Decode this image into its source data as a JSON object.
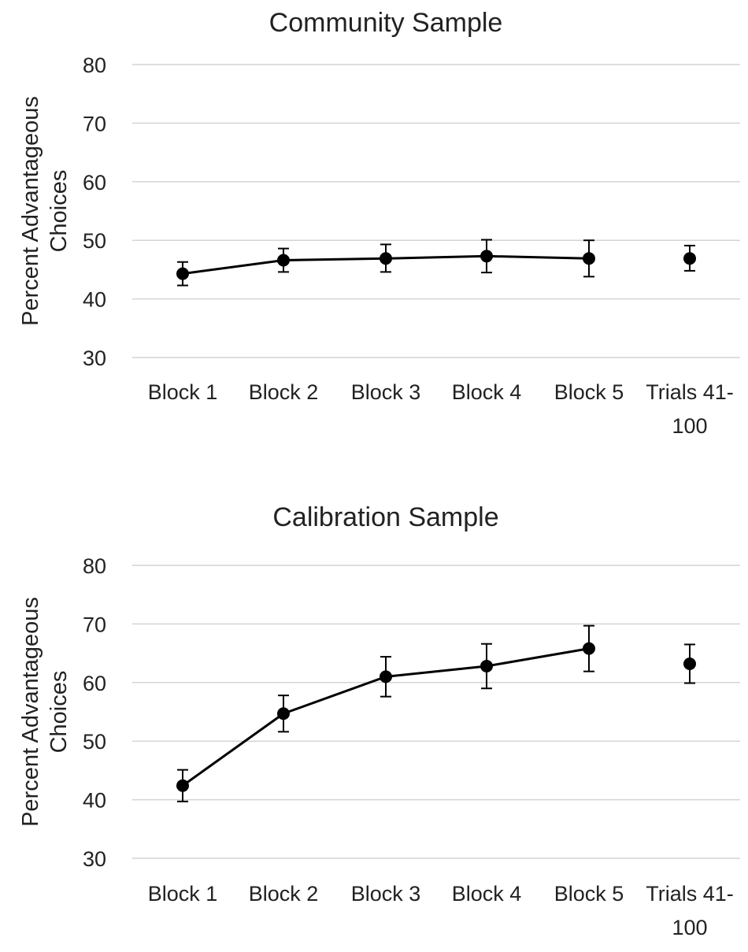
{
  "colors": {
    "grid": "#d4d4d4",
    "line": "#000000",
    "marker": "#000000",
    "text": "#222222",
    "background": "#ffffff"
  },
  "chart_data": [
    {
      "type": "line",
      "title": "Community Sample",
      "ylabel": [
        "Percent Advantageous",
        "Choices"
      ],
      "xlabel": "",
      "ylim": [
        30,
        80
      ],
      "yticks": [
        30,
        40,
        50,
        60,
        70,
        80
      ],
      "grid": true,
      "categories": [
        [
          "Block 1"
        ],
        [
          "Block 2"
        ],
        [
          "Block 3"
        ],
        [
          "Block 4"
        ],
        [
          "Block 5"
        ],
        [
          "Trials 41-",
          "100"
        ]
      ],
      "series": [
        {
          "name": "Community",
          "values": [
            44.3,
            46.6,
            46.9,
            47.3,
            46.9,
            46.9
          ],
          "err_low": [
            42.3,
            44.6,
            44.6,
            44.5,
            43.8,
            44.8
          ],
          "err_high": [
            46.3,
            48.6,
            49.3,
            50.1,
            50.0,
            49.1
          ],
          "connected": [
            true,
            true,
            true,
            true,
            true,
            false
          ]
        }
      ]
    },
    {
      "type": "line",
      "title": "Calibration Sample",
      "ylabel": [
        "Percent Advantageous",
        "Choices"
      ],
      "xlabel": "",
      "ylim": [
        30,
        80
      ],
      "yticks": [
        30,
        40,
        50,
        60,
        70,
        80
      ],
      "grid": true,
      "categories": [
        [
          "Block 1"
        ],
        [
          "Block 2"
        ],
        [
          "Block 3"
        ],
        [
          "Block 4"
        ],
        [
          "Block 5"
        ],
        [
          "Trials 41-",
          "100"
        ]
      ],
      "series": [
        {
          "name": "Calibration",
          "values": [
            42.4,
            54.7,
            61.0,
            62.8,
            65.8,
            63.2
          ],
          "err_low": [
            39.7,
            51.6,
            57.6,
            59.0,
            61.9,
            59.9
          ],
          "err_high": [
            45.1,
            57.8,
            64.4,
            66.6,
            69.7,
            66.5
          ],
          "connected": [
            true,
            true,
            true,
            true,
            true,
            false
          ]
        }
      ]
    }
  ]
}
